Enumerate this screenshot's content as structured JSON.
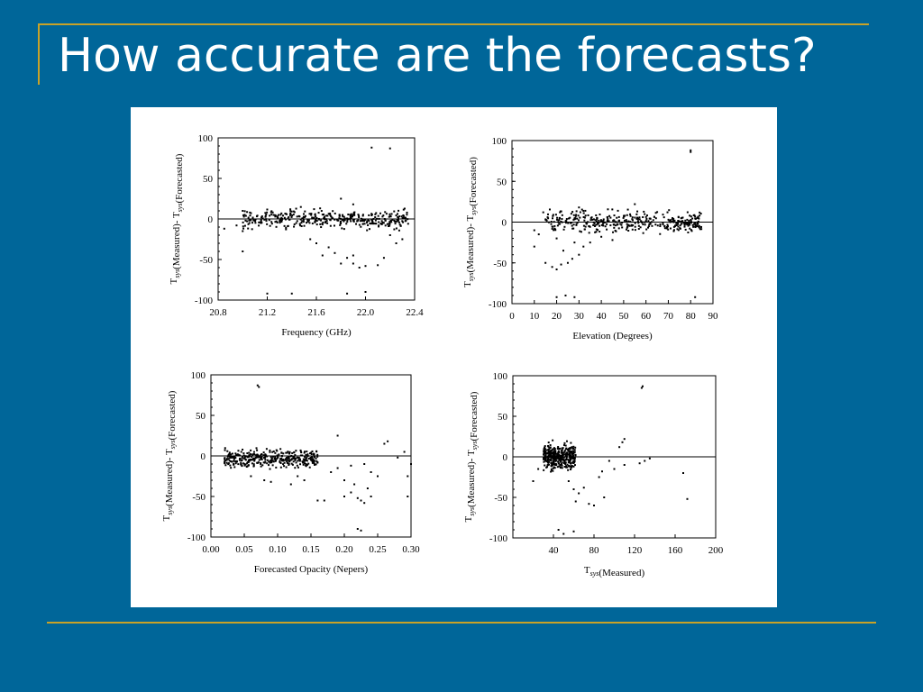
{
  "slide": {
    "title": "How accurate are the forecasts?",
    "colors": {
      "background": "#006699",
      "accent": "#C9A227",
      "title": "#FFFFFF"
    }
  },
  "chart_data": [
    {
      "type": "scatter",
      "title": "",
      "xlabel": "Frequency (GHz)",
      "ylabel": "T_sys(Measured)- T_sys(Forecasted)",
      "xlim": [
        20.8,
        22.4
      ],
      "ylim": [
        -100,
        100
      ],
      "xticks": [
        "20.8",
        "21.2",
        "21.6",
        "22.0",
        "22.4"
      ],
      "yticks": [
        "-100",
        "-50",
        "0",
        "50",
        "100"
      ],
      "zero_line": true,
      "cluster": {
        "x_range": [
          21.0,
          22.35
        ],
        "y_center": 0,
        "y_spread": 8,
        "n": 380
      },
      "points": [
        [
          22.05,
          88
        ],
        [
          22.2,
          87
        ],
        [
          21.0,
          -40
        ],
        [
          22.0,
          -90
        ],
        [
          21.9,
          -55
        ],
        [
          22.0,
          -58
        ],
        [
          21.8,
          -55
        ],
        [
          21.85,
          -48
        ],
        [
          21.9,
          -45
        ],
        [
          22.1,
          -57
        ],
        [
          21.95,
          -60
        ],
        [
          21.7,
          -35
        ],
        [
          21.75,
          -42
        ],
        [
          22.15,
          -48
        ],
        [
          22.25,
          -30
        ],
        [
          21.6,
          -30
        ],
        [
          21.65,
          -45
        ],
        [
          21.55,
          -25
        ],
        [
          22.2,
          -20
        ],
        [
          22.3,
          -25
        ],
        [
          20.85,
          -12
        ],
        [
          20.95,
          -8
        ],
        [
          21.0,
          -15
        ],
        [
          21.0,
          10
        ],
        [
          21.8,
          25
        ],
        [
          21.9,
          18
        ],
        [
          21.85,
          -92
        ],
        [
          21.2,
          -92
        ],
        [
          21.4,
          -92
        ]
      ]
    },
    {
      "type": "scatter",
      "title": "",
      "xlabel": "Elevation (Degrees)",
      "ylabel": "T_sys(Measured)- T_sys(Forecasted)",
      "xlim": [
        0,
        90
      ],
      "ylim": [
        -100,
        100
      ],
      "xticks": [
        "0",
        "10",
        "20",
        "30",
        "40",
        "50",
        "60",
        "70",
        "80",
        "90"
      ],
      "yticks": [
        "-100",
        "-50",
        "0",
        "50",
        "100"
      ],
      "zero_line": true,
      "cluster": {
        "x_range": [
          15,
          85
        ],
        "y_center": 0,
        "y_spread": 9,
        "n": 380
      },
      "points": [
        [
          80,
          86
        ],
        [
          80,
          88
        ],
        [
          10,
          -30
        ],
        [
          12,
          -15
        ],
        [
          15,
          -50
        ],
        [
          18,
          -55
        ],
        [
          20,
          -58
        ],
        [
          22,
          -52
        ],
        [
          25,
          -50
        ],
        [
          27,
          -45
        ],
        [
          30,
          -40
        ],
        [
          32,
          -30
        ],
        [
          35,
          -25
        ],
        [
          20,
          -20
        ],
        [
          23,
          -35
        ],
        [
          28,
          -25
        ],
        [
          40,
          -18
        ],
        [
          45,
          -22
        ],
        [
          30,
          18
        ],
        [
          55,
          22
        ],
        [
          28,
          -92
        ],
        [
          20,
          -92
        ],
        [
          82,
          -92
        ],
        [
          24,
          -90
        ],
        [
          14,
          12
        ],
        [
          84,
          8
        ],
        [
          10,
          -10
        ]
      ]
    },
    {
      "type": "scatter",
      "title": "",
      "xlabel": "Forecasted Opacity (Nepers)",
      "ylabel": "T_sys(Measured)- T_sys(Forecasted)",
      "xlim": [
        0.0,
        0.3
      ],
      "ylim": [
        -100,
        100
      ],
      "xticks": [
        "0.00",
        "0.05",
        "0.10",
        "0.15",
        "0.20",
        "0.25",
        "0.30"
      ],
      "yticks": [
        "-100",
        "-50",
        "0",
        "50",
        "100"
      ],
      "zero_line": true,
      "cluster": {
        "x_range": [
          0.02,
          0.16
        ],
        "y_center": -3,
        "y_spread": 8,
        "n": 360
      },
      "points": [
        [
          0.07,
          87
        ],
        [
          0.072,
          85
        ],
        [
          0.19,
          25
        ],
        [
          0.26,
          15
        ],
        [
          0.265,
          18
        ],
        [
          0.29,
          5
        ],
        [
          0.28,
          -2
        ],
        [
          0.2,
          -50
        ],
        [
          0.21,
          -45
        ],
        [
          0.22,
          -52
        ],
        [
          0.225,
          -55
        ],
        [
          0.23,
          -58
        ],
        [
          0.24,
          -50
        ],
        [
          0.215,
          -35
        ],
        [
          0.235,
          -40
        ],
        [
          0.2,
          -30
        ],
        [
          0.18,
          -20
        ],
        [
          0.19,
          -15
        ],
        [
          0.24,
          -20
        ],
        [
          0.23,
          -10
        ],
        [
          0.25,
          -25
        ],
        [
          0.21,
          -12
        ],
        [
          0.295,
          -50
        ],
        [
          0.295,
          -25
        ],
        [
          0.3,
          -10
        ],
        [
          0.13,
          -25
        ],
        [
          0.14,
          -30
        ],
        [
          0.16,
          -55
        ],
        [
          0.17,
          -55
        ],
        [
          0.225,
          -92
        ],
        [
          0.22,
          -90
        ],
        [
          0.06,
          -25
        ],
        [
          0.08,
          -30
        ],
        [
          0.09,
          -32
        ],
        [
          0.12,
          -35
        ]
      ]
    },
    {
      "type": "scatter",
      "title": "",
      "xlabel": "T_sys(Measured)",
      "ylabel": "T_sys(Measured)- T_sys(Forecasted)",
      "xlim": [
        0,
        200
      ],
      "ylim": [
        -100,
        100
      ],
      "xticks": [
        "40",
        "80",
        "120",
        "160",
        "200"
      ],
      "yticks": [
        "-100",
        "-50",
        "0",
        "50",
        "100"
      ],
      "zero_line": true,
      "cluster": {
        "x_range": [
          30,
          62
        ],
        "y_center": 0,
        "y_spread": 10,
        "n": 380
      },
      "points": [
        [
          128,
          87
        ],
        [
          127,
          85
        ],
        [
          110,
          22
        ],
        [
          108,
          18
        ],
        [
          105,
          12
        ],
        [
          95,
          -5
        ],
        [
          100,
          -15
        ],
        [
          110,
          -10
        ],
        [
          125,
          -8
        ],
        [
          130,
          -5
        ],
        [
          135,
          -2
        ],
        [
          168,
          -20
        ],
        [
          172,
          -52
        ],
        [
          60,
          -40
        ],
        [
          65,
          -45
        ],
        [
          70,
          -38
        ],
        [
          55,
          -30
        ],
        [
          62,
          -55
        ],
        [
          75,
          -58
        ],
        [
          80,
          -60
        ],
        [
          90,
          -50
        ],
        [
          85,
          -25
        ],
        [
          88,
          -18
        ],
        [
          20,
          -30
        ],
        [
          25,
          -15
        ],
        [
          50,
          -95
        ],
        [
          60,
          -92
        ],
        [
          45,
          -90
        ]
      ]
    }
  ]
}
